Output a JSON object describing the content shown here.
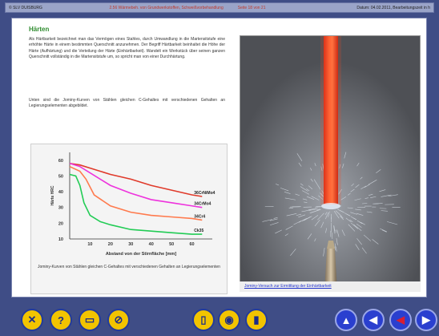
{
  "topbar": {
    "left": "© SLV DUISBURG",
    "title": "2.56 Wärmebeh. von Grundwerkstoffen, Schweißvorbehandlung",
    "page": "Seite 18 von 21",
    "right": "Datum: 04.02.2011, Bearbeitungszeit in h"
  },
  "content": {
    "heading": "Härten",
    "paragraph1": "Als Härtbarkeit bezeichnet man das Vermögen eines Stahles, durch Umwandlung in die Martensitstufe eine erhöhte Härte in einem bestimmten Querschnitt anzunehmen. Der Begriff Härtbarkeit beinhaltet die Höhe der Härte (Aufhärtung) und die Verteilung der Härte (Einhärtbarkeit). Wandelt ein Werkstück über seinen ganzen Querschnitt vollständig in die Martensitstufe um, so spricht man von einer Durchhärtung.",
    "paragraph2": "Unten sind die Jominy-Kurven von Stählen gleichen C-Gehaltes mit verschiedenen Gehalten an Legierungselementen abgebildet.",
    "chart_caption": "Jominy-Kurven von Stählen gleichen C-Gehaltes mit verschiedenen Gehalten an Legierungselementen",
    "photo_caption": "Jominy-Versuch zur Ermittlung der Einhärtbarkeit"
  },
  "chart_data": {
    "type": "line",
    "xlabel": "Abstand von der Stirnfläche [mm]",
    "ylabel": "Härte HRC",
    "x_ticks": [
      10,
      20,
      30,
      40,
      50,
      60
    ],
    "y_ticks": [
      10,
      20,
      30,
      40,
      50,
      60
    ],
    "xlim": [
      0,
      70
    ],
    "ylim": [
      10,
      65
    ],
    "series": [
      {
        "name": "36CrNiMo4",
        "color": "#e03a2a",
        "x": [
          0,
          5,
          10,
          20,
          30,
          40,
          50,
          60,
          65
        ],
        "y": [
          58,
          57,
          55,
          51,
          48,
          44,
          41,
          38,
          37
        ]
      },
      {
        "name": "34CrMo4",
        "color": "#ee33dd",
        "x": [
          0,
          5,
          10,
          20,
          30,
          40,
          50,
          60,
          65
        ],
        "y": [
          58,
          56,
          52,
          44,
          39,
          35,
          33,
          31,
          30
        ]
      },
      {
        "name": "34Cr4",
        "color": "#ff7a4d",
        "x": [
          0,
          5,
          8,
          12,
          20,
          30,
          40,
          50,
          60,
          65
        ],
        "y": [
          56,
          53,
          48,
          38,
          31,
          27,
          25,
          24,
          23,
          22
        ]
      },
      {
        "name": "Ck35",
        "color": "#22cc55",
        "x": [
          0,
          3,
          5,
          7,
          10,
          15,
          20,
          30,
          40,
          50,
          60,
          65
        ],
        "y": [
          51,
          50,
          44,
          33,
          25,
          21,
          19,
          16,
          15,
          14,
          13,
          13
        ]
      }
    ]
  },
  "nav": {
    "buttons": [
      {
        "id": "close",
        "label": "✕",
        "style": "yellow"
      },
      {
        "id": "help",
        "label": "?",
        "style": "yellow"
      },
      {
        "id": "print",
        "label": "▭",
        "style": "yellow"
      },
      {
        "id": "link",
        "label": "⊘",
        "style": "yellow"
      },
      {
        "id": "notes",
        "label": "▯",
        "style": "yellow"
      },
      {
        "id": "video",
        "label": "◉",
        "style": "yellow"
      },
      {
        "id": "info",
        "label": "▮",
        "style": "yellow"
      },
      {
        "id": "up",
        "label": "▲",
        "style": "blue"
      },
      {
        "id": "prev",
        "label": "◀",
        "style": "blue"
      },
      {
        "id": "back",
        "label": "◀",
        "style": "blue-red"
      },
      {
        "id": "next",
        "label": "▶",
        "style": "blue"
      }
    ]
  }
}
